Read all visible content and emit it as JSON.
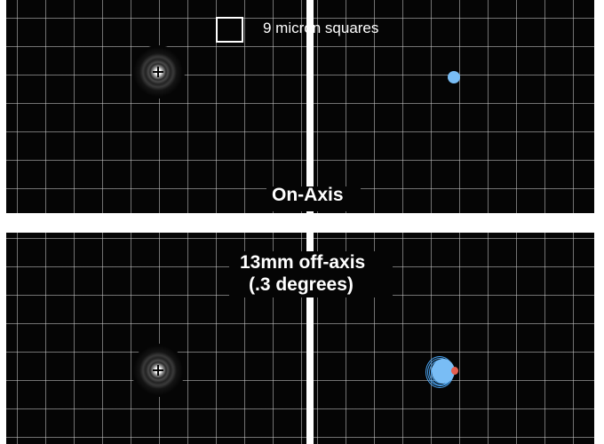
{
  "scale_label": "9 micron squares",
  "on_axis_label": "On-Axis",
  "off_axis_label": {
    "line1": "13mm off-axis",
    "line2": "(.3 degrees)"
  },
  "colors": {
    "background": "#050505",
    "grid": "#cdcdcd",
    "divider": "#ffffff",
    "spot_blue": "#79bdf5",
    "spot_red": "#e55f4f",
    "airy_core": "#ffffff"
  }
}
